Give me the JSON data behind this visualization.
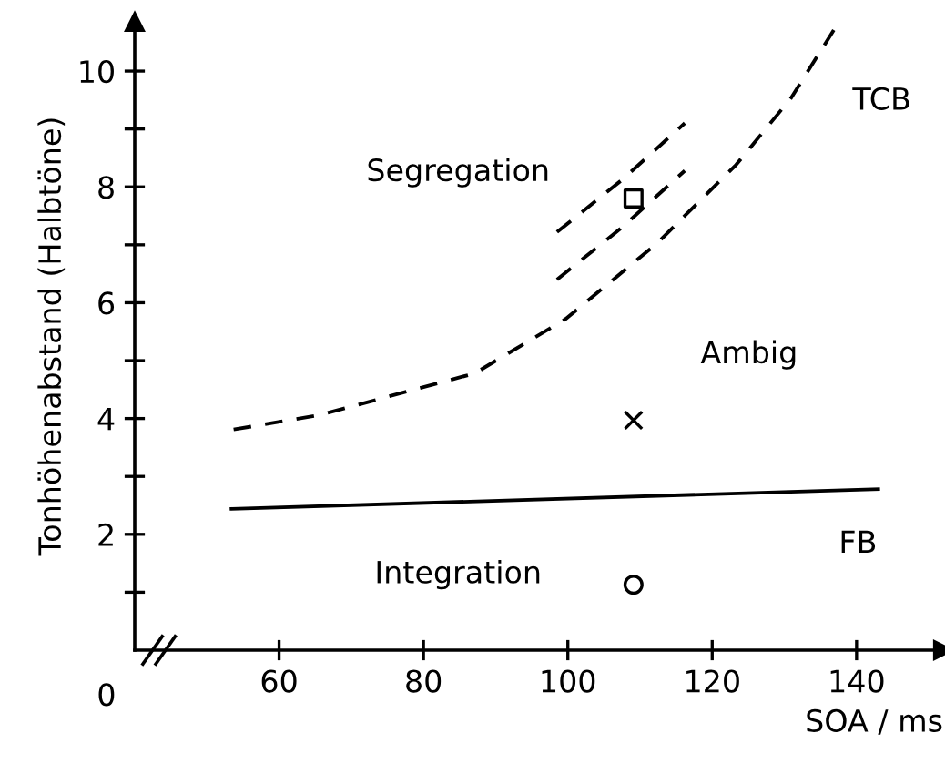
{
  "chart_data": {
    "type": "line",
    "xlabel": "SOA / ms",
    "ylabel": "Tonhöhenabstand (Halbtöne)",
    "xlim": [
      40,
      152
    ],
    "ylim": [
      0,
      10.85
    ],
    "xticks": [
      60,
      80,
      100,
      120,
      140
    ],
    "yticks": [
      2,
      4,
      6,
      8,
      10,
      {
        "value": 1,
        "label": null
      },
      {
        "value": 3,
        "label": null
      },
      {
        "value": 5,
        "label": null
      },
      {
        "value": 7,
        "label": null
      },
      {
        "value": 9,
        "label": null
      }
    ],
    "series": [
      {
        "name": "FB",
        "line_style": "solid",
        "color": "#000000",
        "x": [
          53.4,
          143
        ],
        "values": [
          2.44,
          2.78
        ]
      },
      {
        "name": "TCB",
        "line_style": "dashed",
        "color": "#000000",
        "x": [
          53.7,
          65.6,
          87.1,
          99.7,
          112.4,
          123.3,
          130.9,
          137.2
        ],
        "values": [
          3.81,
          4.06,
          4.78,
          5.72,
          7.03,
          8.38,
          9.53,
          10.78
        ]
      },
      {
        "line_style": "dashed",
        "color": "#000000",
        "x": [
          98.5,
          107.5,
          116.2
        ],
        "values": [
          6.4,
          7.3,
          8.28
        ]
      },
      {
        "line_style": "dashed",
        "color": "#000000",
        "x": [
          98.5,
          107.5,
          116.2
        ],
        "values": [
          7.22,
          8.12,
          9.1
        ]
      },
      {
        "type": "scatter",
        "marker": "square",
        "color": "#000000",
        "x": [
          109.1
        ],
        "values": [
          7.8
        ]
      },
      {
        "type": "scatter",
        "marker": "cross",
        "color": "#000000",
        "x": [
          109.1
        ],
        "values": [
          3.97
        ]
      },
      {
        "type": "scatter",
        "marker": "circle",
        "color": "#000000",
        "x": [
          109.1
        ],
        "values": [
          1.13
        ]
      }
    ],
    "annotations": [
      "0",
      "Segregation",
      "Ambig",
      "Integration"
    ]
  }
}
